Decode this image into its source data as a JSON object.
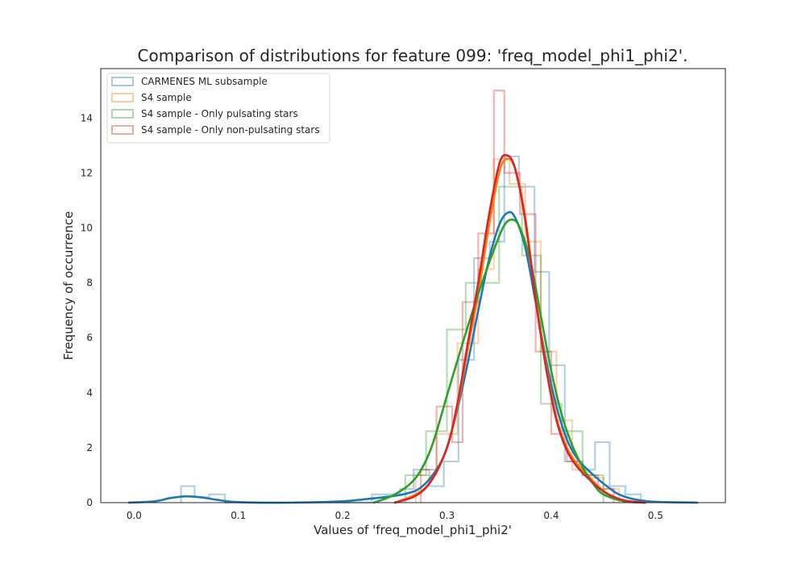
{
  "chart_data": {
    "type": "histogram",
    "title": "Comparison of distributions for feature 099: 'freq_model_phi1_phi2'.",
    "xlabel": "Values of 'freq_model_phi1_phi2'",
    "ylabel": "Frequency of occurrence",
    "xlim": [
      -0.032,
      0.567
    ],
    "ylim": [
      0,
      15.8
    ],
    "xticks": [
      "0.0",
      "0.1",
      "0.2",
      "0.3",
      "0.4",
      "0.5"
    ],
    "yticks": [
      "0",
      "2",
      "4",
      "6",
      "8",
      "10",
      "12",
      "14"
    ],
    "grid": false,
    "legend_position": "top-left",
    "series": [
      {
        "name": "CARMENES ML subsample",
        "color": "#1f77b4",
        "histogram": [
          {
            "x0": 0.045,
            "x1": 0.058,
            "y": 0.6
          },
          {
            "x0": 0.058,
            "x1": 0.072,
            "y": 0.2
          },
          {
            "x0": 0.072,
            "x1": 0.087,
            "y": 0.3
          },
          {
            "x0": 0.087,
            "x1": 0.228,
            "y": 0.0
          },
          {
            "x0": 0.228,
            "x1": 0.255,
            "y": 0.3
          },
          {
            "x0": 0.255,
            "x1": 0.268,
            "y": 0.5
          },
          {
            "x0": 0.268,
            "x1": 0.283,
            "y": 1.2
          },
          {
            "x0": 0.283,
            "x1": 0.297,
            "y": 0.6
          },
          {
            "x0": 0.297,
            "x1": 0.311,
            "y": 1.5
          },
          {
            "x0": 0.311,
            "x1": 0.326,
            "y": 5.2
          },
          {
            "x0": 0.326,
            "x1": 0.341,
            "y": 8.9
          },
          {
            "x0": 0.341,
            "x1": 0.355,
            "y": 9.5
          },
          {
            "x0": 0.355,
            "x1": 0.369,
            "y": 12.6
          },
          {
            "x0": 0.369,
            "x1": 0.384,
            "y": 11.5
          },
          {
            "x0": 0.384,
            "x1": 0.398,
            "y": 8.4
          },
          {
            "x0": 0.398,
            "x1": 0.413,
            "y": 5.0
          },
          {
            "x0": 0.413,
            "x1": 0.427,
            "y": 1.5
          },
          {
            "x0": 0.427,
            "x1": 0.442,
            "y": 1.2
          },
          {
            "x0": 0.442,
            "x1": 0.456,
            "y": 2.2
          },
          {
            "x0": 0.456,
            "x1": 0.471,
            "y": 0.6
          },
          {
            "x0": 0.471,
            "x1": 0.486,
            "y": 0.3
          }
        ],
        "kde": [
          [
            -0.005,
            0.0
          ],
          [
            0.02,
            0.05
          ],
          [
            0.035,
            0.17
          ],
          [
            0.05,
            0.23
          ],
          [
            0.065,
            0.19
          ],
          [
            0.08,
            0.1
          ],
          [
            0.1,
            0.02
          ],
          [
            0.15,
            0.0
          ],
          [
            0.2,
            0.05
          ],
          [
            0.22,
            0.12
          ],
          [
            0.24,
            0.2
          ],
          [
            0.26,
            0.32
          ],
          [
            0.275,
            0.55
          ],
          [
            0.29,
            1.2
          ],
          [
            0.3,
            2.0
          ],
          [
            0.31,
            3.4
          ],
          [
            0.32,
            5.1
          ],
          [
            0.33,
            7.0
          ],
          [
            0.34,
            8.8
          ],
          [
            0.35,
            10.1
          ],
          [
            0.358,
            10.55
          ],
          [
            0.365,
            10.4
          ],
          [
            0.375,
            9.3
          ],
          [
            0.385,
            7.3
          ],
          [
            0.395,
            5.2
          ],
          [
            0.405,
            3.5
          ],
          [
            0.415,
            2.3
          ],
          [
            0.425,
            1.6
          ],
          [
            0.435,
            1.2
          ],
          [
            0.445,
            0.85
          ],
          [
            0.455,
            0.55
          ],
          [
            0.465,
            0.3
          ],
          [
            0.48,
            0.12
          ],
          [
            0.5,
            0.03
          ],
          [
            0.54,
            0.0
          ]
        ]
      },
      {
        "name": "S4 sample",
        "color": "#ff7f0e",
        "histogram": [
          {
            "x0": 0.27,
            "x1": 0.29,
            "y": 1.0
          },
          {
            "x0": 0.29,
            "x1": 0.31,
            "y": 2.5
          },
          {
            "x0": 0.31,
            "x1": 0.33,
            "y": 5.8
          },
          {
            "x0": 0.33,
            "x1": 0.345,
            "y": 8.5
          },
          {
            "x0": 0.345,
            "x1": 0.36,
            "y": 12.5
          },
          {
            "x0": 0.36,
            "x1": 0.375,
            "y": 11.6
          },
          {
            "x0": 0.375,
            "x1": 0.39,
            "y": 9.5
          },
          {
            "x0": 0.39,
            "x1": 0.405,
            "y": 5.5
          },
          {
            "x0": 0.405,
            "x1": 0.42,
            "y": 3.0
          },
          {
            "x0": 0.42,
            "x1": 0.435,
            "y": 1.2
          },
          {
            "x0": 0.435,
            "x1": 0.45,
            "y": 0.9
          },
          {
            "x0": 0.45,
            "x1": 0.465,
            "y": 0.5
          }
        ],
        "kde": [
          [
            0.25,
            0.0
          ],
          [
            0.27,
            0.3
          ],
          [
            0.285,
            0.8
          ],
          [
            0.3,
            2.0
          ],
          [
            0.31,
            3.5
          ],
          [
            0.32,
            5.6
          ],
          [
            0.33,
            7.6
          ],
          [
            0.34,
            10.0
          ],
          [
            0.35,
            12.0
          ],
          [
            0.357,
            12.5
          ],
          [
            0.365,
            12.2
          ],
          [
            0.375,
            10.4
          ],
          [
            0.385,
            7.5
          ],
          [
            0.395,
            5.0
          ],
          [
            0.405,
            3.1
          ],
          [
            0.415,
            2.0
          ],
          [
            0.425,
            1.4
          ],
          [
            0.435,
            1.0
          ],
          [
            0.445,
            0.6
          ],
          [
            0.455,
            0.3
          ],
          [
            0.47,
            0.08
          ],
          [
            0.49,
            0.0
          ]
        ]
      },
      {
        "name": "S4 sample - Only pulsating stars",
        "color": "#2ca02c",
        "histogram": [
          {
            "x0": 0.26,
            "x1": 0.28,
            "y": 1.0
          },
          {
            "x0": 0.28,
            "x1": 0.3,
            "y": 2.6
          },
          {
            "x0": 0.3,
            "x1": 0.318,
            "y": 6.3
          },
          {
            "x0": 0.318,
            "x1": 0.35,
            "y": 8.0
          },
          {
            "x0": 0.35,
            "x1": 0.372,
            "y": 11.5
          },
          {
            "x0": 0.372,
            "x1": 0.39,
            "y": 9.0
          },
          {
            "x0": 0.39,
            "x1": 0.41,
            "y": 3.6
          },
          {
            "x0": 0.41,
            "x1": 0.43,
            "y": 2.6
          },
          {
            "x0": 0.43,
            "x1": 0.45,
            "y": 1.0
          }
        ],
        "kde": [
          [
            0.23,
            0.0
          ],
          [
            0.25,
            0.3
          ],
          [
            0.27,
            0.9
          ],
          [
            0.285,
            2.0
          ],
          [
            0.3,
            3.9
          ],
          [
            0.315,
            5.8
          ],
          [
            0.33,
            7.6
          ],
          [
            0.345,
            9.2
          ],
          [
            0.355,
            10.1
          ],
          [
            0.363,
            10.3
          ],
          [
            0.37,
            10.0
          ],
          [
            0.38,
            8.8
          ],
          [
            0.39,
            6.8
          ],
          [
            0.4,
            4.8
          ],
          [
            0.41,
            3.2
          ],
          [
            0.42,
            2.1
          ],
          [
            0.43,
            1.3
          ],
          [
            0.44,
            0.7
          ],
          [
            0.45,
            0.3
          ],
          [
            0.47,
            0.05
          ],
          [
            0.49,
            0.0
          ]
        ]
      },
      {
        "name": "S4 sample - Only non-pulsating stars",
        "color": "#d62728",
        "histogram": [
          {
            "x0": 0.275,
            "x1": 0.29,
            "y": 1.2
          },
          {
            "x0": 0.29,
            "x1": 0.305,
            "y": 3.5
          },
          {
            "x0": 0.305,
            "x1": 0.315,
            "y": 2.2
          },
          {
            "x0": 0.315,
            "x1": 0.33,
            "y": 7.3
          },
          {
            "x0": 0.33,
            "x1": 0.345,
            "y": 9.8
          },
          {
            "x0": 0.345,
            "x1": 0.355,
            "y": 15.0
          },
          {
            "x0": 0.355,
            "x1": 0.37,
            "y": 12.0
          },
          {
            "x0": 0.37,
            "x1": 0.385,
            "y": 10.5
          },
          {
            "x0": 0.385,
            "x1": 0.4,
            "y": 5.5
          },
          {
            "x0": 0.4,
            "x1": 0.415,
            "y": 2.5
          },
          {
            "x0": 0.415,
            "x1": 0.43,
            "y": 1.5
          },
          {
            "x0": 0.43,
            "x1": 0.445,
            "y": 1.0
          },
          {
            "x0": 0.445,
            "x1": 0.46,
            "y": 0.5
          }
        ],
        "kde": [
          [
            0.25,
            0.0
          ],
          [
            0.27,
            0.25
          ],
          [
            0.285,
            0.8
          ],
          [
            0.3,
            2.0
          ],
          [
            0.31,
            3.6
          ],
          [
            0.32,
            5.8
          ],
          [
            0.33,
            8.0
          ],
          [
            0.34,
            10.4
          ],
          [
            0.35,
            12.3
          ],
          [
            0.357,
            12.65
          ],
          [
            0.365,
            12.2
          ],
          [
            0.375,
            10.3
          ],
          [
            0.385,
            7.4
          ],
          [
            0.395,
            4.9
          ],
          [
            0.405,
            3.0
          ],
          [
            0.415,
            1.9
          ],
          [
            0.425,
            1.3
          ],
          [
            0.435,
            0.9
          ],
          [
            0.445,
            0.55
          ],
          [
            0.455,
            0.3
          ],
          [
            0.47,
            0.08
          ],
          [
            0.49,
            0.0
          ]
        ]
      }
    ]
  }
}
